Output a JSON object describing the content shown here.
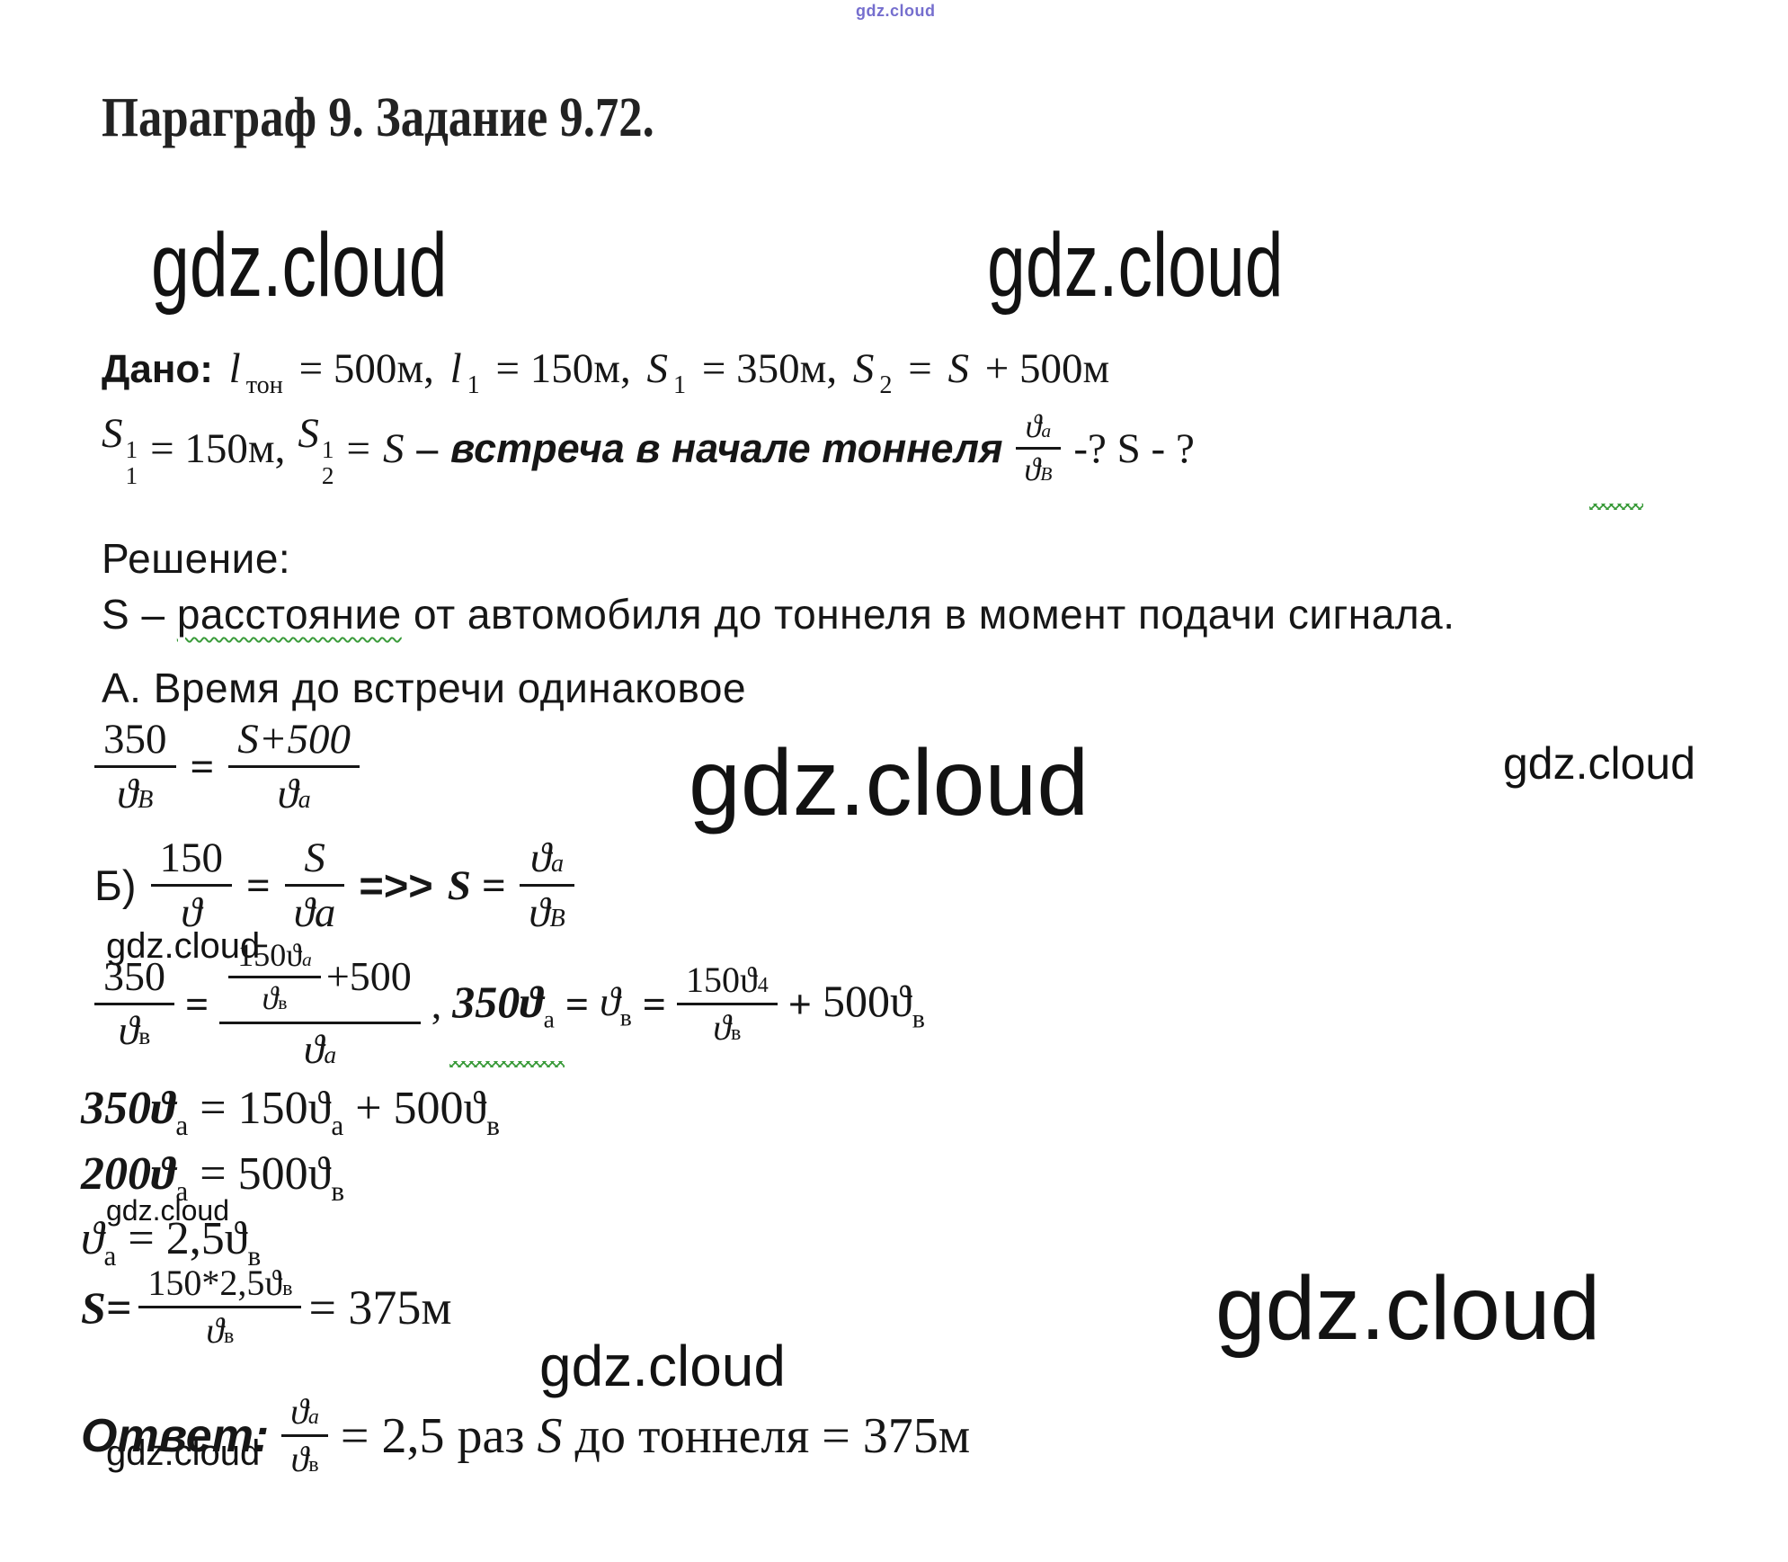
{
  "page": {
    "bg": "#ffffff",
    "ink": "#161616",
    "squiggle_green": "#3a9b3a",
    "watermark_purple": "#5d55c6"
  },
  "watermarks": {
    "text": "gdz.cloud"
  },
  "header": {
    "title": "Параграф 9. Задание 9.72."
  },
  "given": {
    "label": "Дано:",
    "r1": [
      "l",
      "тон",
      "= 500м,",
      "l",
      "1",
      "= 150м,",
      "S",
      "1",
      "= 350м,",
      "S",
      "2",
      "=",
      "S",
      "+ 500м"
    ],
    "r2": {
      "s1_base": "S",
      "s1_sup": "1",
      "s1_sub": "1",
      "t1": "= 150м,",
      "s2_base": "S",
      "s2_sup": "1",
      "s2_sub": "2",
      "t2": "=",
      "t3": "S",
      "t4": "–",
      "meet": "встреча в начале тоннеля",
      "fn": "ϑ",
      "fns": "a",
      "fd": "ϑ",
      "fds": "B",
      "quest": "-? S - ?"
    }
  },
  "solution": {
    "label": "Решение:",
    "s_def": {
      "pre": "S – ",
      "word": "расстояние",
      "post": " от автомобиля до тоннеля в момент подачи сигнала."
    },
    "point_a": "А. Время до встречи одинаковое",
    "eq1": {
      "f1n": "350",
      "f1d": "ϑ",
      "f1ds": "B",
      "eq": "=",
      "f2n": "S+500",
      "f2d": "ϑ",
      "f2ds": "a"
    },
    "eq2": {
      "label": "Б)",
      "f1n": "150",
      "f1d": "ϑ",
      "eq": "=",
      "f2n": "S",
      "f2d": "ϑa",
      "arrow": "=>>",
      "s": "S =",
      "f3n": "ϑ",
      "f3ns": "a",
      "f3d": "ϑ",
      "f3ds": "B"
    },
    "eq3": {
      "f1n": "350",
      "f1d": "ϑ",
      "f1ds": "в",
      "eq1": "=",
      "inn": "150ϑ",
      "inns": "a",
      "ind": "ϑ",
      "inds": "в",
      "plus500": "+500",
      "bigd": "ϑ",
      "bigds": "a",
      "comma": ",",
      "m1": "350ϑ",
      "m1s": "a",
      "eq2": "=",
      "m2": "ϑ",
      "m2s": "в",
      "eq3": "=",
      "f2n": "150ϑ",
      "f2ns": "4",
      "f2d": "ϑ",
      "f2ds": "в",
      "plus": "+",
      "m3": "500ϑ",
      "m3s": "в"
    },
    "eq4": {
      "m1": "350ϑ",
      "m1s": "a",
      "mid": "= 150ϑ",
      "m2s": "a",
      "plus": "+ 500ϑ",
      "m3s": "в"
    },
    "eq5": {
      "m1": "200ϑ",
      "m1s": "a",
      "mid": "= 500ϑ",
      "m2s": "в"
    },
    "eq6": {
      "m1": "ϑ",
      "m1s": "a",
      "mid": "= 2,5ϑ",
      "m2s": "в"
    },
    "eq7": {
      "s": "S=",
      "fn": "150*2,5ϑ",
      "fns": "в",
      "fd": "ϑ",
      "fds": "в",
      "res": "= 375м"
    }
  },
  "answer": {
    "label": "Ответ:",
    "fn": "ϑ",
    "fns": "a",
    "fd": "ϑ",
    "fds": "в",
    "t1": "= 2,5 раз",
    "s": "S",
    "t2": "до тоннеля = 375м"
  }
}
